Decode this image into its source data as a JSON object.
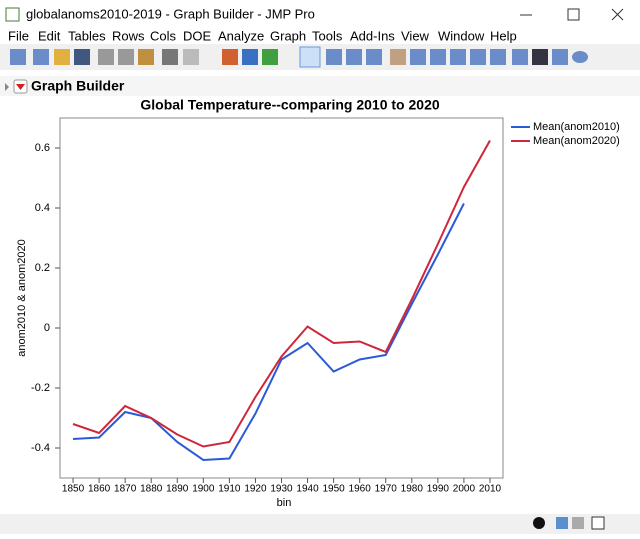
{
  "window": {
    "title": "globalanoms2010-2019 - Graph Builder - JMP Pro"
  },
  "menu": {
    "items": [
      "File",
      "Edit",
      "Tables",
      "Rows",
      "Cols",
      "DOE",
      "Analyze",
      "Graph",
      "Tools",
      "Add-Ins",
      "View",
      "Window",
      "Help"
    ]
  },
  "panel": {
    "title": "Graph Builder"
  },
  "chart_data": {
    "type": "line",
    "title": "Global Temperature--comparing 2010 to 2020",
    "x_label": "bin",
    "y_label": "anom2010 & anom2020",
    "x": [
      1850,
      1860,
      1870,
      1880,
      1890,
      1900,
      1910,
      1920,
      1930,
      1940,
      1950,
      1960,
      1970,
      1980,
      1990,
      2000,
      2010
    ],
    "series": [
      {
        "name": "Mean(anom2010)",
        "color": "#2a5bd7",
        "values": [
          -0.37,
          -0.365,
          -0.28,
          -0.3,
          -0.38,
          -0.44,
          -0.435,
          -0.285,
          -0.105,
          -0.05,
          -0.145,
          -0.105,
          -0.09,
          0.08,
          0.245,
          0.415,
          null
        ]
      },
      {
        "name": "Mean(anom2020)",
        "color": "#d0263a",
        "values": [
          -0.32,
          -0.35,
          -0.26,
          -0.3,
          -0.355,
          -0.395,
          -0.38,
          -0.23,
          -0.095,
          0.005,
          -0.05,
          -0.045,
          -0.08,
          0.095,
          0.28,
          0.47,
          0.625
        ]
      }
    ],
    "xlim": [
      1845,
      2015
    ],
    "xticks": [
      1850,
      1860,
      1870,
      1880,
      1890,
      1900,
      1910,
      1920,
      1930,
      1940,
      1950,
      1960,
      1970,
      1980,
      1990,
      2000,
      2010
    ],
    "ylim": [
      -0.5,
      0.7
    ],
    "yticks": [
      -0.4,
      -0.2,
      0,
      0.2,
      0.4,
      0.6
    ],
    "grid": false,
    "legend": "right"
  }
}
